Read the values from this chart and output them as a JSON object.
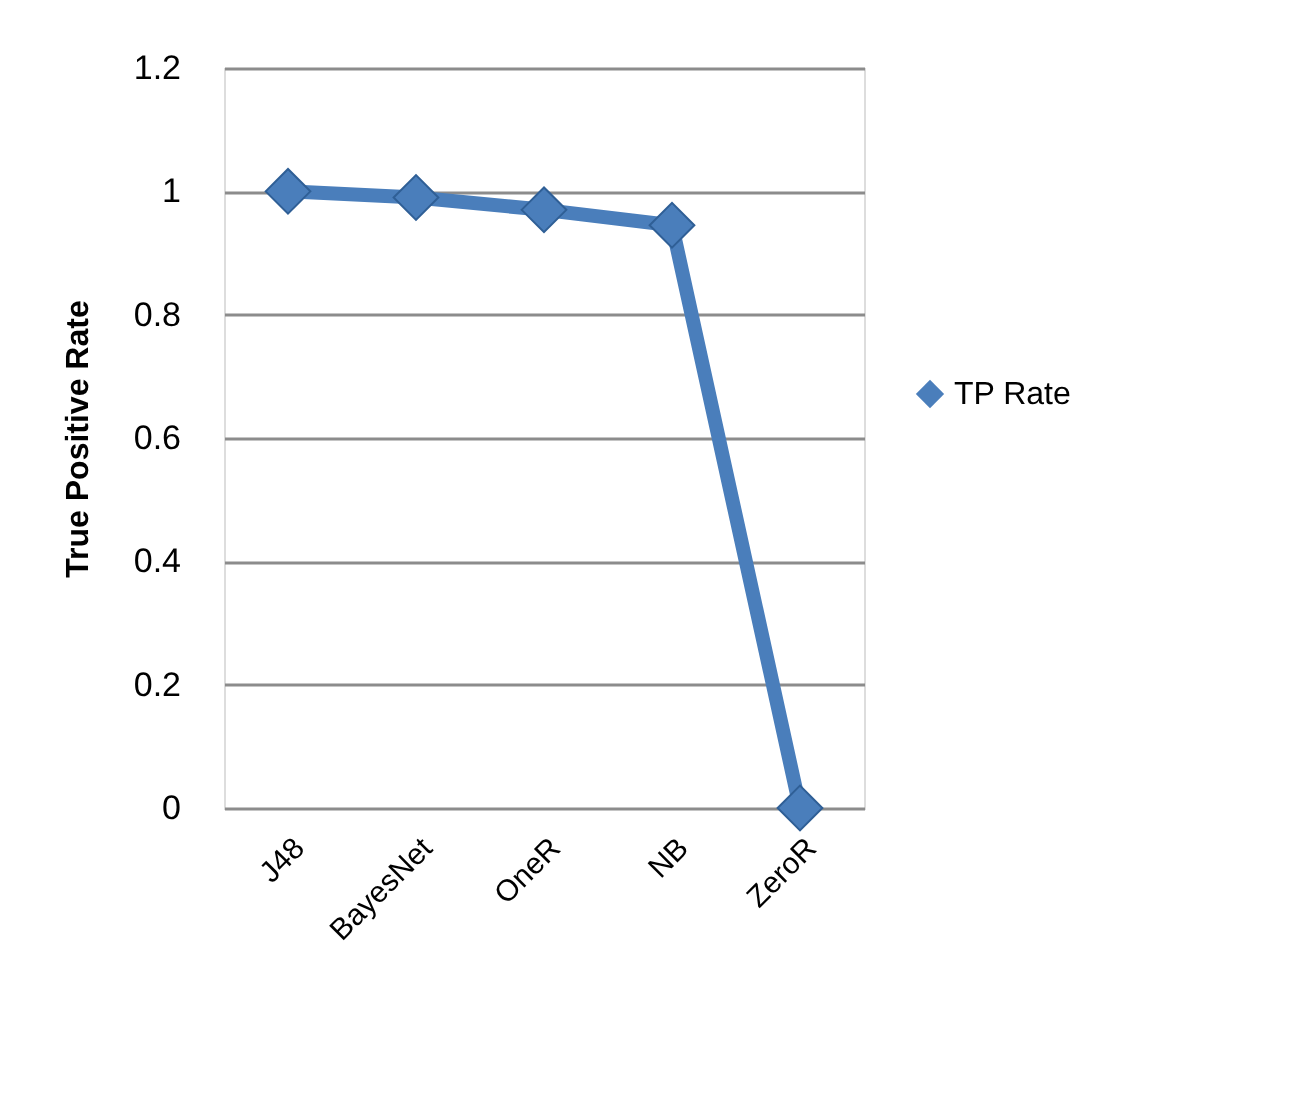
{
  "chart_data": {
    "type": "line",
    "ylabel": "True  Positive  Rate",
    "categories": [
      "J48",
      "BayesNet",
      "OneR",
      "NB",
      "ZeroR"
    ],
    "series": [
      {
        "name": "TP   Rate",
        "color": "#4a7ebb",
        "values": [
          1.0,
          0.99,
          0.97,
          0.945,
          0
        ]
      }
    ],
    "ylim": [
      0,
      1.2
    ],
    "yticks": [
      0,
      0.2,
      0.4,
      0.6,
      0.8,
      1,
      1.2
    ],
    "grid": "y",
    "legend": "right",
    "marker": "diamond",
    "line_style": "solid"
  }
}
